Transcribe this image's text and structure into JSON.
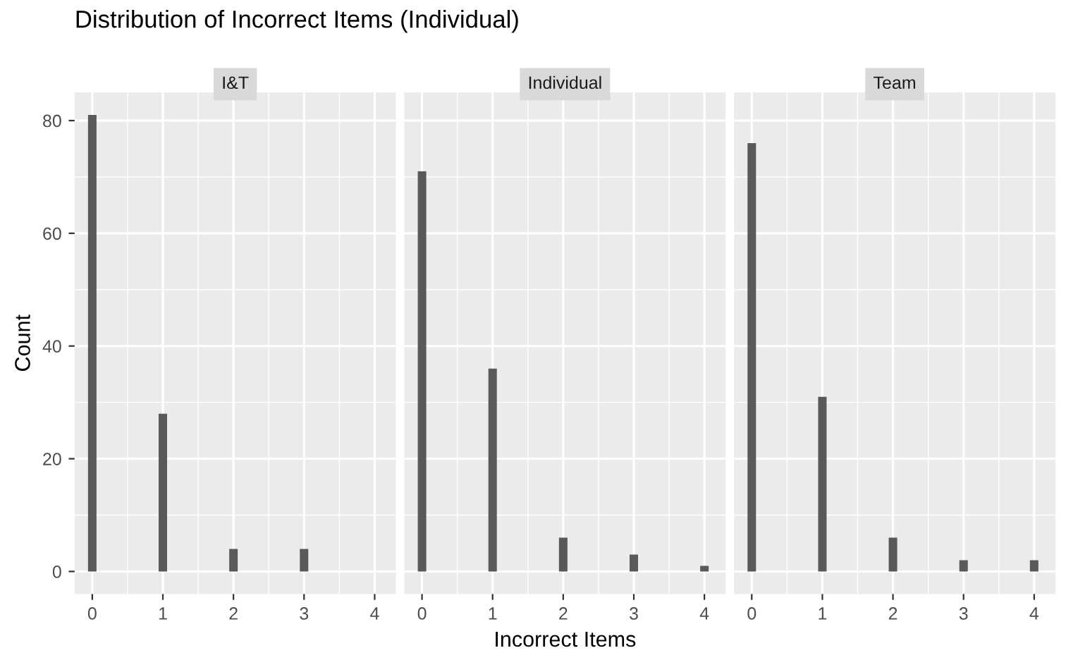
{
  "chart_data": [
    {
      "type": "bar",
      "title": "Distribution of Incorrect Items (Individual)",
      "subtitle": "I&T",
      "ylabel": "Count",
      "x": [
        0,
        1,
        2,
        3,
        4
      ],
      "values": [
        81,
        28,
        4,
        4,
        0
      ],
      "color": "#595959",
      "xlim": [
        -0.25,
        4.3
      ],
      "xticks": [
        0,
        1,
        2,
        3,
        4
      ],
      "ylim": [
        -4,
        85
      ],
      "yticks": [
        0,
        20,
        40,
        60,
        80
      ],
      "grid": true,
      "legend": false
    },
    {
      "type": "bar",
      "subtitle": "Individual",
      "xlabel": "Incorrect Items",
      "x": [
        0,
        1,
        2,
        3,
        4
      ],
      "values": [
        71,
        36,
        6,
        3,
        1
      ],
      "color": "#595959",
      "xlim": [
        -0.25,
        4.3
      ],
      "xticks": [
        0,
        1,
        2,
        3,
        4
      ],
      "ylim": [
        -4,
        85
      ],
      "yticks": [
        0,
        20,
        40,
        60,
        80
      ],
      "grid": true,
      "legend": false,
      "tick_labels": "x"
    },
    {
      "type": "bar",
      "subtitle": "Team",
      "x": [
        0,
        1,
        2,
        3,
        4
      ],
      "values": [
        76,
        31,
        6,
        2,
        2
      ],
      "color": "#595959",
      "xlim": [
        -0.25,
        4.3
      ],
      "xticks": [
        0,
        1,
        2,
        3,
        4
      ],
      "ylim": [
        -4,
        85
      ],
      "yticks": [
        0,
        20,
        40,
        60,
        80
      ],
      "grid": true,
      "legend": false,
      "tick_labels": "x"
    }
  ]
}
